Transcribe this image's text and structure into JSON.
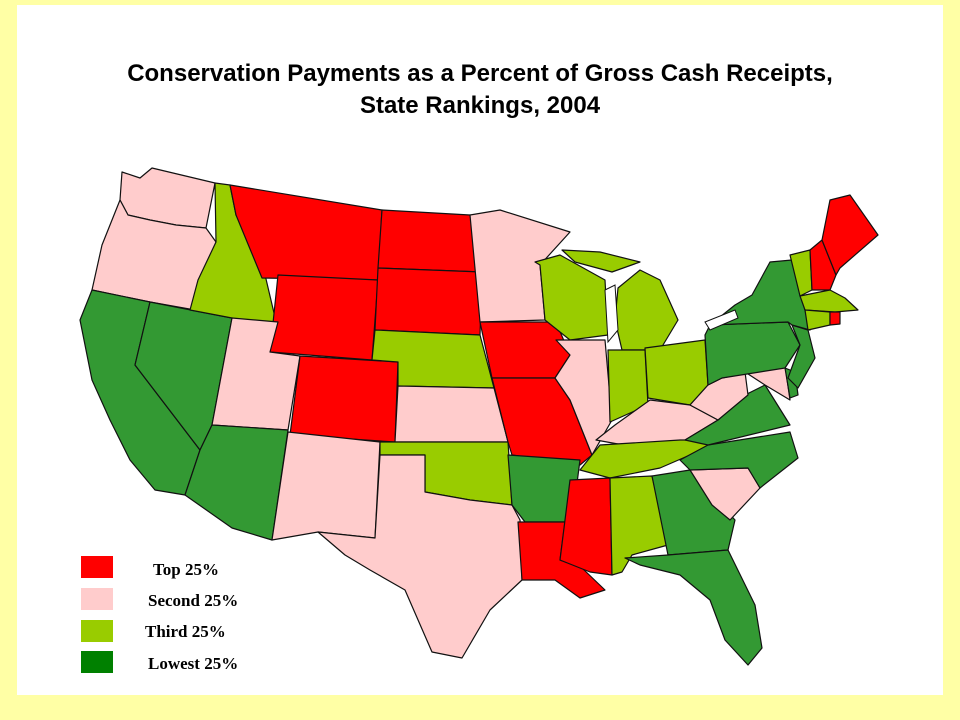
{
  "title": {
    "line1": "Conservation Payments as a Percent of Gross Cash Receipts,",
    "line2": "State Rankings, 2004"
  },
  "colors": {
    "top": "#FF0000",
    "second": "#FFCCCC",
    "third": "#99CC00",
    "lowest": "#339933",
    "lowest_swatch": "#008000",
    "background": "#FFFFA5"
  },
  "legend": [
    {
      "label": "Top 25%",
      "class": "top",
      "color": "#FF0000"
    },
    {
      "label": "Second 25%",
      "class": "second",
      "color": "#FFCCCC"
    },
    {
      "label": "Third 25%",
      "class": "third",
      "color": "#99CC00"
    },
    {
      "label": "Lowest 25%",
      "class": "lowest",
      "color": "#008000"
    }
  ],
  "states": {
    "WA": "second",
    "OR": "second",
    "CA": "lowest",
    "NV": "lowest",
    "ID": "third",
    "MT": "top",
    "WY": "top",
    "UT": "second",
    "AZ": "lowest",
    "CO": "top",
    "NM": "second",
    "ND": "top",
    "SD": "top",
    "NE": "third",
    "KS": "second",
    "OK": "third",
    "TX": "second",
    "MN": "second",
    "IA": "top",
    "MO": "top",
    "AR": "lowest",
    "LA": "top",
    "WI": "third",
    "IL": "second",
    "MI": "third",
    "IN": "third",
    "OH": "third",
    "KY": "second",
    "TN": "third",
    "MS": "top",
    "AL": "third",
    "GA": "lowest",
    "FL": "lowest",
    "SC": "second",
    "NC": "lowest",
    "VA": "lowest",
    "WV": "second",
    "MD": "second",
    "DE": "lowest",
    "PA": "lowest",
    "NJ": "lowest",
    "NY": "lowest",
    "CT": "third",
    "RI": "top",
    "MA": "third",
    "VT": "third",
    "NH": "top",
    "ME": "top"
  }
}
